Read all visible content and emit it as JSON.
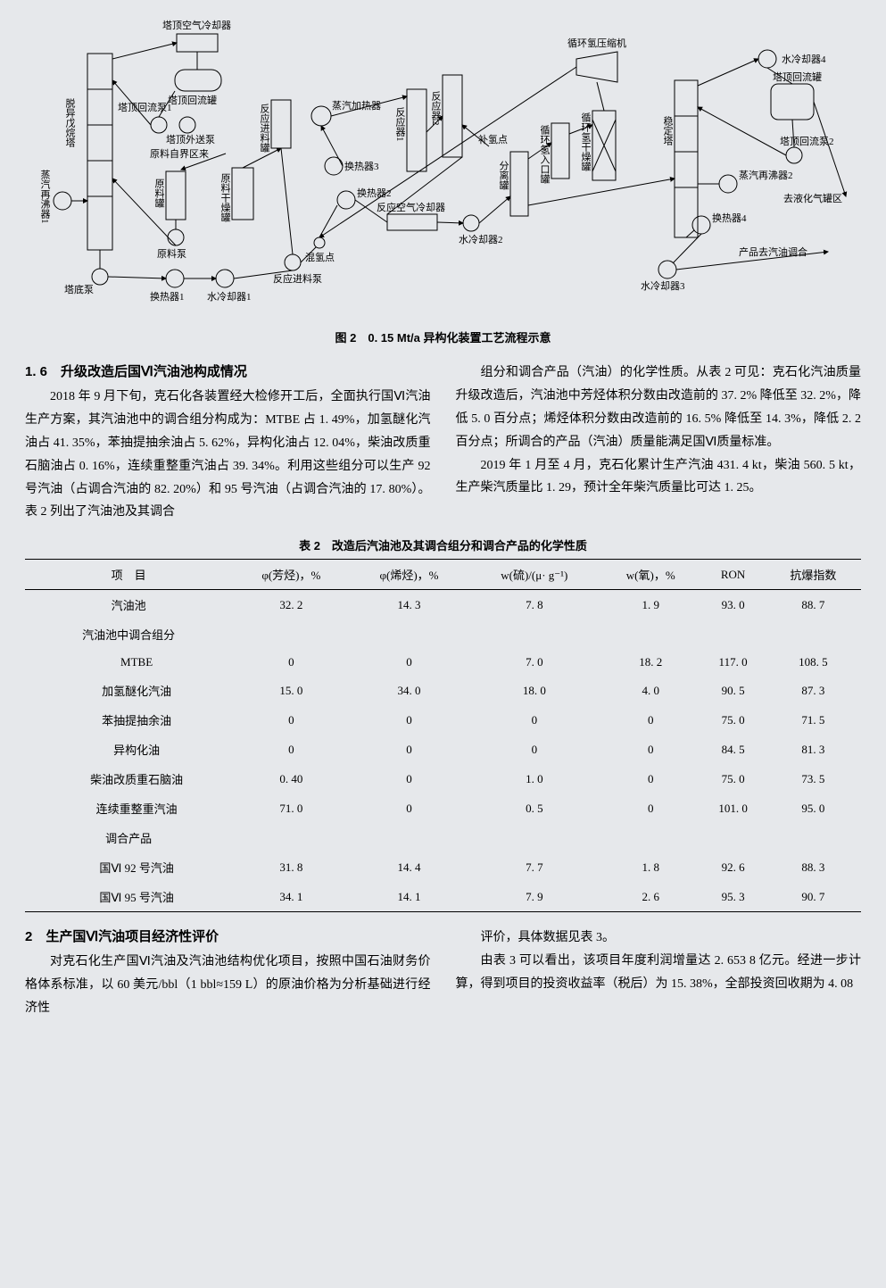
{
  "figure": {
    "caption": "图 2　0. 15 Mt/a 异构化装置工艺流程示意",
    "labels": {
      "l1": "塔顶空气冷却器",
      "l2": "塔顶回流罐",
      "l3": "脱异戊烷塔",
      "l4": "塔顶回流泵1",
      "l5": "塔顶外送泵",
      "l6": "原料自界区来",
      "l7": "原料罐",
      "l8": "原料泵",
      "l9": "原料干燥罐",
      "l10": "反应进料罐",
      "l11": "蒸汽加热器",
      "l12": "换热器3",
      "l13": "换热器2",
      "l14": "反应空气冷却器",
      "l15": "反应器1",
      "l16": "反应器2",
      "l17": "补氢点",
      "l18": "分离罐",
      "l19": "循环氢入口罐",
      "l20": "循环氢干燥罐",
      "l21": "循环氢压缩机",
      "l22": "水冷却器4",
      "l23": "塔顶回流罐",
      "l24": "稳定塔",
      "l25": "蒸汽再沸器2",
      "l26": "塔顶回流泵2",
      "l27": "去液化气罐区",
      "l28": "换热器4",
      "l29": "产品去汽油调合",
      "l30": "水冷却器3",
      "l31": "水冷却器2",
      "l32": "混氢点",
      "l33": "反应进料泵",
      "l34": "水冷却器1",
      "l35": "换热器1",
      "l36": "塔底泵",
      "l37": "蒸汽再沸器1"
    },
    "stroke_color": "#000000",
    "background_color": "#e6e8eb",
    "line_width": 1
  },
  "section1_6": {
    "heading": "1. 6　升级改造后国Ⅵ汽油池构成情况",
    "p1": "2018 年 9 月下旬，克石化各装置经大检修开工后，全面执行国Ⅵ汽油生产方案，其汽油池中的调合组分构成为：MTBE 占 1. 49%，加氢醚化汽油占 41. 35%，苯抽提抽余油占 5. 62%，异构化油占 12. 04%，柴油改质重石脑油占 0. 16%，连续重整重汽油占 39. 34%。利用这些组分可以生产 92 号汽油（占调合汽油的 82. 20%）和 95 号汽油（占调合汽油的 17. 80%）。表 2 列出了汽油池及其调合",
    "p2": "组分和调合产品（汽油）的化学性质。从表 2 可见：克石化汽油质量升级改造后，汽油池中芳烃体积分数由改造前的 37. 2% 降低至 32. 2%，降低 5. 0 百分点；烯烃体积分数由改造前的 16. 5% 降低至 14. 3%，降低 2. 2 百分点；所调合的产品（汽油）质量能满足国Ⅵ质量标准。",
    "p3": "2019 年 1 月至 4 月，克石化累计生产汽油 431. 4 kt，柴油 560. 5 kt，生产柴汽质量比 1. 29，预计全年柴汽质量比可达 1. 25。"
  },
  "table2": {
    "caption": "表 2　改造后汽油池及其调合组分和调合产品的化学性质",
    "columns": [
      "项　目",
      "φ(芳烃)，%",
      "φ(烯烃)，%",
      "w(硫)/(μ· g⁻¹)",
      "w(氧)，%",
      "RON",
      "抗爆指数"
    ],
    "rows": [
      {
        "label": "汽油池",
        "indent": 0,
        "cells": [
          "32. 2",
          "14. 3",
          "7. 8",
          "1. 9",
          "93. 0",
          "88. 7"
        ]
      },
      {
        "label": "汽油池中调合组分",
        "indent": 0,
        "cells": [
          "",
          "",
          "",
          "",
          "",
          ""
        ]
      },
      {
        "label": "MTBE",
        "indent": 1,
        "cells": [
          "0",
          "0",
          "7. 0",
          "18. 2",
          "117. 0",
          "108. 5"
        ]
      },
      {
        "label": "加氢醚化汽油",
        "indent": 1,
        "cells": [
          "15. 0",
          "34. 0",
          "18. 0",
          "4. 0",
          "90. 5",
          "87. 3"
        ]
      },
      {
        "label": "苯抽提抽余油",
        "indent": 1,
        "cells": [
          "0",
          "0",
          "0",
          "0",
          "75. 0",
          "71. 5"
        ]
      },
      {
        "label": "异构化油",
        "indent": 1,
        "cells": [
          "0",
          "0",
          "0",
          "0",
          "84. 5",
          "81. 3"
        ]
      },
      {
        "label": "柴油改质重石脑油",
        "indent": 1,
        "cells": [
          "0. 40",
          "0",
          "1. 0",
          "0",
          "75. 0",
          "73. 5"
        ]
      },
      {
        "label": "连续重整重汽油",
        "indent": 1,
        "cells": [
          "71. 0",
          "0",
          "0. 5",
          "0",
          "101. 0",
          "95. 0"
        ]
      },
      {
        "label": "调合产品",
        "indent": 0,
        "cells": [
          "",
          "",
          "",
          "",
          "",
          ""
        ]
      },
      {
        "label": "国Ⅵ 92 号汽油",
        "indent": 1,
        "cells": [
          "31. 8",
          "14. 4",
          "7. 7",
          "1. 8",
          "92. 6",
          "88. 3"
        ]
      },
      {
        "label": "国Ⅵ 95 号汽油",
        "indent": 1,
        "cells": [
          "34. 1",
          "14. 1",
          "7. 9",
          "2. 6",
          "95. 3",
          "90. 7"
        ]
      }
    ],
    "header_border_color": "#000000",
    "font_size": 13
  },
  "section2": {
    "heading": "2　生产国Ⅵ汽油项目经济性评价",
    "p1": "对克石化生产国Ⅵ汽油及汽油池结构优化项目，按照中国石油财务价格体系标准，以 60 美元/bbl（1 bbl≈159 L）的原油价格为分析基础进行经济性",
    "p2": "评价，具体数据见表 3。",
    "p3": "由表 3 可以看出，该项目年度利润增量达 2. 653 8 亿元。经进一步计算，得到项目的投资收益率（税后）为 15. 38%，全部投资回收期为 4. 08"
  }
}
